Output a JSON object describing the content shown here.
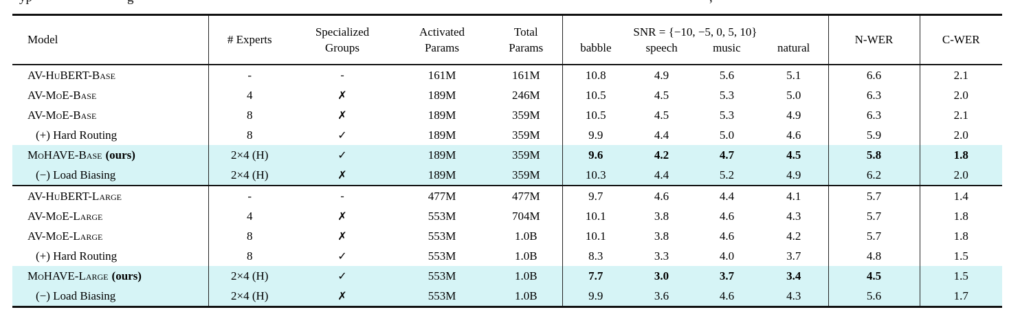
{
  "colors": {
    "highlight": "#d6f4f6",
    "rule": "#111111",
    "text": "#000000",
    "background": "#ffffff"
  },
  "caption_fragments": [
    "yp",
    "g",
    ","
  ],
  "table": {
    "header": {
      "model": "Model",
      "experts": "# Experts",
      "groups": [
        "Specialized",
        "Groups"
      ],
      "activated": [
        "Activated",
        "Params"
      ],
      "total": [
        "Total",
        "Params"
      ],
      "snr_group": "SNR = {−10, −5, 0, 5, 10}",
      "snr_subs": [
        "babble",
        "speech",
        "music",
        "natural"
      ],
      "nwer": "N-WER",
      "cwer": "C-WER"
    },
    "sections": [
      {
        "rows": [
          {
            "model": "AV-HuBERT-Base",
            "sc": true,
            "indent": false,
            "suffix": "",
            "experts": "-",
            "groups": "-",
            "activated": "161M",
            "total": "161M",
            "snr": [
              "10.8",
              "4.9",
              "5.6",
              "5.1"
            ],
            "nwer": "6.6",
            "cwer": "2.1",
            "highlight": false,
            "bold_snr": false,
            "bold_nwer": false,
            "bold_cwer": false
          },
          {
            "model": "AV-MoE-Base",
            "sc": true,
            "indent": false,
            "suffix": "",
            "experts": "4",
            "groups": "✗",
            "activated": "189M",
            "total": "246M",
            "snr": [
              "10.5",
              "4.5",
              "5.3",
              "5.0"
            ],
            "nwer": "6.3",
            "cwer": "2.0",
            "highlight": false,
            "bold_snr": false,
            "bold_nwer": false,
            "bold_cwer": false
          },
          {
            "model": "AV-MoE-Base",
            "sc": true,
            "indent": false,
            "suffix": "",
            "experts": "8",
            "groups": "✗",
            "activated": "189M",
            "total": "359M",
            "snr": [
              "10.5",
              "4.5",
              "5.3",
              "4.9"
            ],
            "nwer": "6.3",
            "cwer": "2.1",
            "highlight": false,
            "bold_snr": false,
            "bold_nwer": false,
            "bold_cwer": false
          },
          {
            "model": "(+) Hard Routing",
            "sc": false,
            "indent": true,
            "suffix": "",
            "experts": "8",
            "groups": "✓",
            "activated": "189M",
            "total": "359M",
            "snr": [
              "9.9",
              "4.4",
              "5.0",
              "4.6"
            ],
            "nwer": "5.9",
            "cwer": "2.0",
            "highlight": false,
            "bold_snr": false,
            "bold_nwer": false,
            "bold_cwer": false
          },
          {
            "model": "MoHAVE-Base",
            "sc": true,
            "indent": false,
            "suffix": "(ours)",
            "experts": "2×4 (H)",
            "groups": "✓",
            "activated": "189M",
            "total": "359M",
            "snr": [
              "9.6",
              "4.2",
              "4.7",
              "4.5"
            ],
            "nwer": "5.8",
            "cwer": "1.8",
            "highlight": true,
            "bold_snr": true,
            "bold_nwer": true,
            "bold_cwer": true
          },
          {
            "model": "(−) Load Biasing",
            "sc": false,
            "indent": true,
            "suffix": "",
            "experts": "2×4 (H)",
            "groups": "✗",
            "activated": "189M",
            "total": "359M",
            "snr": [
              "10.3",
              "4.4",
              "5.2",
              "4.9"
            ],
            "nwer": "6.2",
            "cwer": "2.0",
            "highlight": true,
            "bold_snr": false,
            "bold_nwer": false,
            "bold_cwer": false
          }
        ]
      },
      {
        "rows": [
          {
            "model": "AV-HuBERT-Large",
            "sc": true,
            "indent": false,
            "suffix": "",
            "experts": "-",
            "groups": "-",
            "activated": "477M",
            "total": "477M",
            "snr": [
              "9.7",
              "4.6",
              "4.4",
              "4.1"
            ],
            "nwer": "5.7",
            "cwer": "1.4",
            "highlight": false,
            "bold_snr": false,
            "bold_nwer": false,
            "bold_cwer": false
          },
          {
            "model": "AV-MoE-Large",
            "sc": true,
            "indent": false,
            "suffix": "",
            "experts": "4",
            "groups": "✗",
            "activated": "553M",
            "total": "704M",
            "snr": [
              "10.1",
              "3.8",
              "4.6",
              "4.3"
            ],
            "nwer": "5.7",
            "cwer": "1.8",
            "highlight": false,
            "bold_snr": false,
            "bold_nwer": false,
            "bold_cwer": false
          },
          {
            "model": "AV-MoE-Large",
            "sc": true,
            "indent": false,
            "suffix": "",
            "experts": "8",
            "groups": "✗",
            "activated": "553M",
            "total": "1.0B",
            "snr": [
              "10.1",
              "3.8",
              "4.6",
              "4.2"
            ],
            "nwer": "5.7",
            "cwer": "1.8",
            "highlight": false,
            "bold_snr": false,
            "bold_nwer": false,
            "bold_cwer": false
          },
          {
            "model": "(+) Hard Routing",
            "sc": false,
            "indent": true,
            "suffix": "",
            "experts": "8",
            "groups": "✓",
            "activated": "553M",
            "total": "1.0B",
            "snr": [
              "8.3",
              "3.3",
              "4.0",
              "3.7"
            ],
            "nwer": "4.8",
            "cwer": "1.5",
            "highlight": false,
            "bold_snr": false,
            "bold_nwer": false,
            "bold_cwer": false
          },
          {
            "model": "MoHAVE-Large",
            "sc": true,
            "indent": false,
            "suffix": "(ours)",
            "experts": "2×4 (H)",
            "groups": "✓",
            "activated": "553M",
            "total": "1.0B",
            "snr": [
              "7.7",
              "3.0",
              "3.7",
              "3.4"
            ],
            "nwer": "4.5",
            "cwer": "1.5",
            "highlight": true,
            "bold_snr": true,
            "bold_nwer": true,
            "bold_cwer": false
          },
          {
            "model": "(−) Load Biasing",
            "sc": false,
            "indent": true,
            "suffix": "",
            "experts": "2×4 (H)",
            "groups": "✗",
            "activated": "553M",
            "total": "1.0B",
            "snr": [
              "9.9",
              "3.6",
              "4.6",
              "4.3"
            ],
            "nwer": "5.6",
            "cwer": "1.7",
            "highlight": true,
            "bold_snr": false,
            "bold_nwer": false,
            "bold_cwer": false
          }
        ]
      }
    ]
  }
}
